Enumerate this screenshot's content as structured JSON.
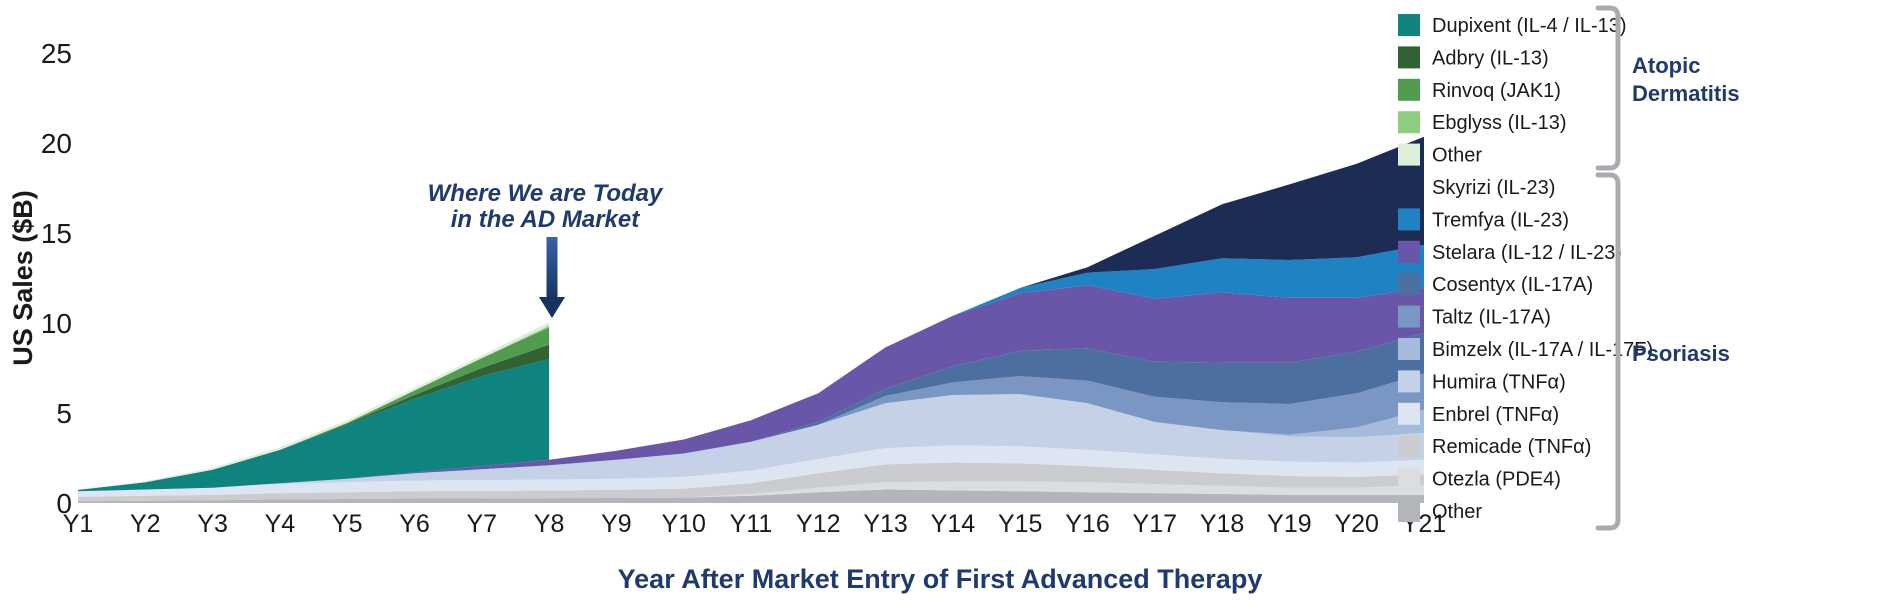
{
  "figure": {
    "background": "#ffffff",
    "accent_navy": "#1e3a6f",
    "axis_text_color": "#1a1a1a",
    "bracket_color": "#a9acaf"
  },
  "axes": {
    "y_title": "US Sales ($B)",
    "x_title": "Year After Market Entry of First Advanced Therapy"
  },
  "annotation": {
    "line1": "Where We are Today",
    "line2": "in the AD Market"
  },
  "groups": {
    "ad": {
      "line1": "Atopic",
      "line2": "Dermatitis"
    },
    "psoriasis": {
      "label": "Psoriasis"
    }
  },
  "chart_data": {
    "type": "area",
    "stacked": true,
    "grid": false,
    "legend_position": "right",
    "x": [
      "Y1",
      "Y2",
      "Y3",
      "Y4",
      "Y5",
      "Y6",
      "Y7",
      "Y8",
      "Y9",
      "Y10",
      "Y11",
      "Y12",
      "Y13",
      "Y14",
      "Y15",
      "Y16",
      "Y17",
      "Y18",
      "Y19",
      "Y20",
      "Y21"
    ],
    "y_ticks": [
      0,
      5,
      10,
      15,
      20,
      25
    ],
    "ylim": [
      0,
      26
    ],
    "note": "Atopic Dermatitis series end abruptly at Y8 (annotated 'Where We are Today in the AD Market'); AD stack is drawn on top of the psoriasis stack.",
    "ad_totals_estimate": [
      0.1,
      0.45,
      1.1,
      2.0,
      3.25,
      4.7,
      6.15,
      7.65
    ],
    "psoriasis_totals_estimate": [
      0.65,
      0.75,
      0.85,
      1.1,
      1.35,
      1.7,
      2.05,
      2.4,
      2.9,
      3.53,
      4.6,
      6.1,
      8.65,
      10.4,
      11.95,
      13.1,
      14.85,
      16.6,
      17.7,
      18.85,
      20.35
    ],
    "stack_order_bottom_to_top": [
      "other_pso",
      "otezla",
      "remicade",
      "enbrel",
      "humira",
      "bimzelx",
      "taltz",
      "cosentyx",
      "stelara",
      "tremfya",
      "skyrizi",
      "dupixent",
      "adbry",
      "rinvoq",
      "ebglyss",
      "other_ad"
    ],
    "series": [
      {
        "id": "dupixent",
        "label": "Dupixent (IL-4 / IL-13)",
        "group": "ad",
        "color": "#0f837d",
        "values": [
          0.08,
          0.4,
          1.0,
          1.85,
          3.0,
          4.1,
          5.0,
          5.6
        ]
      },
      {
        "id": "adbry",
        "label": "Adbry (IL-13)",
        "group": "ad",
        "color": "#326134",
        "values": [
          0,
          0,
          0,
          0,
          0.05,
          0.2,
          0.45,
          0.8
        ]
      },
      {
        "id": "rinvoq",
        "label": "Rinvoq (JAK1)",
        "group": "ad",
        "color": "#519c4f",
        "values": [
          0,
          0,
          0,
          0,
          0.05,
          0.25,
          0.55,
          0.95
        ]
      },
      {
        "id": "ebglyss",
        "label": "Ebglyss (IL-13)",
        "group": "ad",
        "color": "#8ecd7f",
        "values": [
          0,
          0,
          0,
          0,
          0,
          0,
          0,
          0.1
        ]
      },
      {
        "id": "other_ad",
        "label": "Other",
        "group": "ad",
        "color": "#ddefd8",
        "values": [
          0.02,
          0.05,
          0.1,
          0.15,
          0.15,
          0.15,
          0.15,
          0.2
        ]
      },
      {
        "id": "skyrizi",
        "label": "Skyrizi (IL-23)",
        "group": "psoriasis",
        "color": "#1d2c55",
        "values": [
          0,
          0,
          0,
          0,
          0,
          0,
          0,
          0,
          0,
          0,
          0,
          0,
          0,
          0,
          0,
          0.3,
          1.85,
          3.0,
          4.2,
          5.2,
          6.0
        ]
      },
      {
        "id": "tremfya",
        "label": "Tremfya (IL-23)",
        "group": "psoriasis",
        "color": "#1f82c2",
        "values": [
          0,
          0,
          0,
          0,
          0,
          0,
          0,
          0,
          0,
          0,
          0,
          0,
          0,
          0,
          0.3,
          0.7,
          1.65,
          1.9,
          2.1,
          2.25,
          2.4
        ]
      },
      {
        "id": "stelara",
        "label": "Stelara (IL-12 / IL-23)",
        "group": "psoriasis",
        "color": "#6956a9",
        "values": [
          0,
          0,
          0,
          0,
          0,
          0.05,
          0.18,
          0.3,
          0.5,
          0.78,
          1.2,
          1.6,
          2.3,
          2.8,
          3.2,
          3.5,
          3.5,
          3.9,
          3.6,
          3.0,
          2.5
        ]
      },
      {
        "id": "cosentyx",
        "label": "Cosentyx (IL-17A)",
        "group": "psoriasis",
        "color": "#4d6f9f",
        "values": [
          0,
          0,
          0,
          0,
          0,
          0,
          0,
          0,
          0,
          0,
          0,
          0.15,
          0.4,
          0.9,
          1.4,
          1.8,
          1.95,
          2.2,
          2.3,
          2.3,
          2.25
        ]
      },
      {
        "id": "taltz",
        "label": "Taltz (IL-17A)",
        "group": "psoriasis",
        "color": "#7a96c2",
        "values": [
          0,
          0,
          0,
          0,
          0,
          0,
          0,
          0,
          0,
          0,
          0,
          0,
          0.4,
          0.7,
          1.0,
          1.25,
          1.4,
          1.55,
          1.7,
          1.9,
          2.0
        ]
      },
      {
        "id": "bimzelx",
        "label": "Bimzelx (IL-17A / IL-17F)",
        "group": "psoriasis",
        "color": "#a6badb",
        "values": [
          0,
          0,
          0,
          0,
          0,
          0,
          0,
          0,
          0,
          0,
          0,
          0,
          0,
          0,
          0,
          0,
          0,
          0,
          0.1,
          0.55,
          1.3
        ]
      },
      {
        "id": "humira",
        "label": "Humira (TNFα)",
        "group": "psoriasis",
        "color": "#c4d1e7",
        "values": [
          0,
          0,
          0,
          0.05,
          0.2,
          0.4,
          0.6,
          0.8,
          1.05,
          1.3,
          1.6,
          1.9,
          2.5,
          2.8,
          2.9,
          2.6,
          1.8,
          1.6,
          1.4,
          1.4,
          1.5
        ]
      },
      {
        "id": "enbrel",
        "label": "Enbrel (TNFα)",
        "group": "psoriasis",
        "color": "#dee5f2",
        "values": [
          0.3,
          0.35,
          0.4,
          0.5,
          0.55,
          0.6,
          0.6,
          0.6,
          0.62,
          0.65,
          0.7,
          0.8,
          0.9,
          0.95,
          0.95,
          0.9,
          0.85,
          0.8,
          0.8,
          0.8,
          0.8
        ]
      },
      {
        "id": "remicade",
        "label": "Remicade (TNFα)",
        "group": "psoriasis",
        "color": "#cacccf",
        "values": [
          0.25,
          0.28,
          0.3,
          0.35,
          0.38,
          0.4,
          0.42,
          0.43,
          0.45,
          0.5,
          0.6,
          0.8,
          1.0,
          1.05,
          1.0,
          0.9,
          0.8,
          0.7,
          0.65,
          0.6,
          0.6
        ]
      },
      {
        "id": "otezla",
        "label": "Otezla (PDE4)",
        "group": "psoriasis",
        "color": "#dbdddf",
        "values": [
          0,
          0,
          0,
          0,
          0,
          0,
          0,
          0,
          0,
          0,
          0.1,
          0.25,
          0.4,
          0.5,
          0.55,
          0.55,
          0.5,
          0.45,
          0.4,
          0.4,
          0.55
        ]
      },
      {
        "id": "other_pso",
        "label": "Other",
        "group": "psoriasis",
        "color": "#b2b5b9",
        "values": [
          0.1,
          0.12,
          0.15,
          0.2,
          0.22,
          0.25,
          0.25,
          0.27,
          0.28,
          0.3,
          0.4,
          0.6,
          0.75,
          0.7,
          0.65,
          0.6,
          0.55,
          0.5,
          0.45,
          0.45,
          0.45
        ]
      }
    ]
  }
}
